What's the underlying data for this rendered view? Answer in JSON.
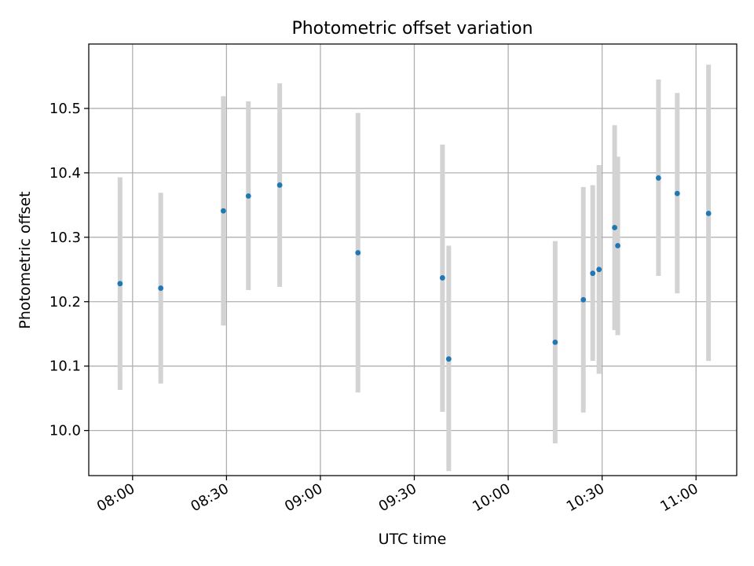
{
  "chart_data": {
    "type": "scatter",
    "title": "Photometric offset variation",
    "xlabel": "UTC time",
    "ylabel": "Photometric offset",
    "x_tick_labels": [
      "08:00",
      "08:30",
      "09:00",
      "09:30",
      "10:00",
      "10:30",
      "11:00"
    ],
    "y_tick_labels": [
      "10.0",
      "10.1",
      "10.2",
      "10.3",
      "10.4",
      "10.5"
    ],
    "x_ticks": [
      "08:00",
      "08:30",
      "09:00",
      "09:30",
      "10:00",
      "10:30",
      "11:00"
    ],
    "y_ticks": [
      10.0,
      10.1,
      10.2,
      10.3,
      10.4,
      10.5
    ],
    "xlim": [
      "07:46",
      "11:13"
    ],
    "ylim": [
      9.93,
      10.6
    ],
    "grid": true,
    "colors": {
      "marker": "#1f77b4",
      "errorbar": "#d3d3d3",
      "grid": "#b0b0b0"
    },
    "points": [
      {
        "x": "07:56",
        "y": 10.228,
        "ylow": 10.063,
        "yhigh": 10.393
      },
      {
        "x": "08:09",
        "y": 10.221,
        "ylow": 10.073,
        "yhigh": 10.369
      },
      {
        "x": "08:29",
        "y": 10.341,
        "ylow": 10.163,
        "yhigh": 10.519
      },
      {
        "x": "08:37",
        "y": 10.364,
        "ylow": 10.218,
        "yhigh": 10.511
      },
      {
        "x": "08:47",
        "y": 10.381,
        "ylow": 10.223,
        "yhigh": 10.539
      },
      {
        "x": "09:12",
        "y": 10.276,
        "ylow": 10.059,
        "yhigh": 10.493
      },
      {
        "x": "09:39",
        "y": 10.237,
        "ylow": 10.029,
        "yhigh": 10.444
      },
      {
        "x": "09:41",
        "y": 10.111,
        "ylow": 9.937,
        "yhigh": 10.287
      },
      {
        "x": "10:15",
        "y": 10.137,
        "ylow": 9.98,
        "yhigh": 10.294
      },
      {
        "x": "10:24",
        "y": 10.203,
        "ylow": 10.028,
        "yhigh": 10.378
      },
      {
        "x": "10:27",
        "y": 10.244,
        "ylow": 10.108,
        "yhigh": 10.381
      },
      {
        "x": "10:29",
        "y": 10.25,
        "ylow": 10.088,
        "yhigh": 10.412
      },
      {
        "x": "10:34",
        "y": 10.315,
        "ylow": 10.156,
        "yhigh": 10.474
      },
      {
        "x": "10:35",
        "y": 10.287,
        "ylow": 10.148,
        "yhigh": 10.425
      },
      {
        "x": "10:48",
        "y": 10.392,
        "ylow": 10.24,
        "yhigh": 10.545
      },
      {
        "x": "10:54",
        "y": 10.368,
        "ylow": 10.213,
        "yhigh": 10.524
      },
      {
        "x": "11:04",
        "y": 10.337,
        "ylow": 10.108,
        "yhigh": 10.568
      }
    ]
  }
}
